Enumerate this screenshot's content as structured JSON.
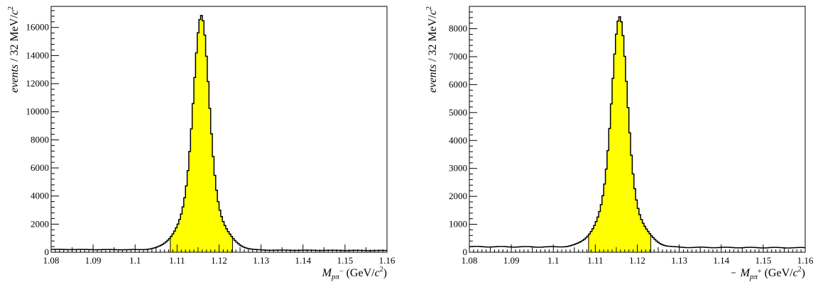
{
  "chart_data": [
    {
      "type": "bar",
      "xlim": [
        1.08,
        1.16
      ],
      "ylim": [
        0,
        17500
      ],
      "xticks": [
        "1.08",
        "1.09",
        "1.1",
        "1.11",
        "1.12",
        "1.13",
        "1.14",
        "1.15",
        "1.16"
      ],
      "yticks": [
        "0",
        "2000",
        "4000",
        "6000",
        "8000",
        "10000",
        "12000",
        "14000",
        "16000"
      ],
      "xlabel": {
        "symbol": "M",
        "subscript": "pπ",
        "superscript": "−",
        "units": "(GeV/c",
        "units_exp": "2",
        "units_close": ")"
      },
      "ylabel": {
        "text": "events / 32 MeV/",
        "unit": "c",
        "exp": "2"
      },
      "signal_window": [
        1.1083,
        1.123
      ],
      "signal_fill_color": "#ffff00",
      "peak": {
        "mean": 1.11575,
        "amplitude": 16700,
        "sigma_core": 0.00175,
        "sigma_tail": 0.0042
      },
      "background": {
        "start": 200,
        "slope_per_gev": 1000
      }
    },
    {
      "type": "bar",
      "xlim": [
        1.08,
        1.16
      ],
      "ylim": [
        0,
        8800
      ],
      "xticks": [
        "1.08",
        "1.09",
        "1.1",
        "1.11",
        "1.12",
        "1.13",
        "1.14",
        "1.15",
        "1.16"
      ],
      "yticks": [
        "0",
        "1000",
        "2000",
        "3000",
        "4000",
        "5000",
        "6000",
        "7000",
        "8000"
      ],
      "xlabel": {
        "symbol": "M",
        "subscript": "pπ",
        "superscript": "+",
        "units": "(GeV/c",
        "units_exp": "2",
        "units_close": ")"
      },
      "ylabel": {
        "text": "events / 32 MeV/",
        "unit": "c",
        "exp": "2"
      },
      "signal_window": [
        1.1083,
        1.123
      ],
      "signal_fill_color": "#ffff00",
      "peak": {
        "mean": 1.11575,
        "amplitude": 8250,
        "sigma_core": 0.00175,
        "sigma_tail": 0.0042
      },
      "background": {
        "start": 200,
        "slope_per_gev": 500
      }
    }
  ]
}
